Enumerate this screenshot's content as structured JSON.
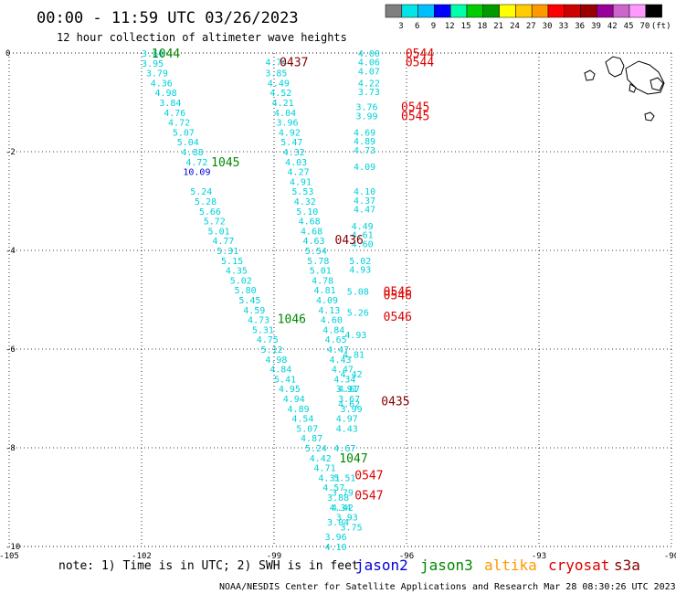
{
  "header": {
    "title": "00:00 - 11:59 UTC 03/26/2023",
    "subtitle": "12 hour collection of altimeter wave heights"
  },
  "colorbar": {
    "ticks": [
      "3",
      "6",
      "9",
      "12",
      "15",
      "18",
      "21",
      "24",
      "27",
      "30",
      "33",
      "36",
      "39",
      "42",
      "45",
      "70",
      "(ft)"
    ],
    "colors": [
      "#7f7f7f",
      "#00e5e5",
      "#00bfff",
      "#0000ff",
      "#00ffaa",
      "#00cc00",
      "#009900",
      "#ffff00",
      "#ffcc00",
      "#ff9900",
      "#ff0000",
      "#cc0000",
      "#990000",
      "#990099",
      "#cc66cc",
      "#ff99ff",
      "#000000"
    ]
  },
  "footer": {
    "note": "note: 1) Time is in UTC; 2) SWH is in feet",
    "satellites": [
      {
        "name": "jason2",
        "color": "#0000dd"
      },
      {
        "name": "jason3",
        "color": "#008800"
      },
      {
        "name": "altika",
        "color": "#ff9900"
      },
      {
        "name": "cryosat",
        "color": "#dd0000"
      },
      {
        "name": "s3a",
        "color": "#880000"
      }
    ],
    "credit": "NOAA/NESDIS Center for Satellite Applications and Research   Mar 28 08:30:26 UTC 2023"
  },
  "chart_data": {
    "type": "scatter",
    "title": "00:00 - 11:59 UTC 03/26/2023",
    "subtitle": "12 hour collection of altimeter wave heights",
    "xlim": [
      -105,
      -90
    ],
    "ylim": [
      -10,
      0
    ],
    "x_ticks": [
      "-105",
      "-102",
      "-99",
      "-96",
      "-93",
      "-90"
    ],
    "y_ticks": [
      "0",
      "-2",
      "-4",
      "-6",
      "-8",
      "-10"
    ],
    "grid": true,
    "units": "ft",
    "time_labels": [
      {
        "text": "1044",
        "lon": -101.45,
        "lat": 0.0,
        "sat": "jason3",
        "color": "#008800"
      },
      {
        "text": "0437",
        "lon": -98.55,
        "lat": -0.18,
        "sat": "s3a",
        "color": "#880000"
      },
      {
        "text": "0544",
        "lon": -95.7,
        "lat": 0.0,
        "sat": "cryosat",
        "color": "#dd0000"
      },
      {
        "text": "0544",
        "lon": -95.7,
        "lat": -0.18,
        "sat": "cryosat",
        "color": "#dd0000"
      },
      {
        "text": "0545",
        "lon": -95.8,
        "lat": -1.08,
        "sat": "cryosat",
        "color": "#dd0000"
      },
      {
        "text": "0545",
        "lon": -95.8,
        "lat": -1.27,
        "sat": "cryosat",
        "color": "#dd0000"
      },
      {
        "text": "1045",
        "lon": -100.1,
        "lat": -2.2,
        "sat": "jason3",
        "color": "#008800"
      },
      {
        "text": "0436",
        "lon": -97.3,
        "lat": -3.78,
        "sat": "s3a",
        "color": "#880000"
      },
      {
        "text": "0546",
        "lon": -96.2,
        "lat": -4.82,
        "sat": "cryosat",
        "color": "#dd0000"
      },
      {
        "text": "0546",
        "lon": -96.2,
        "lat": -4.9,
        "sat": "cryosat",
        "color": "#dd0000"
      },
      {
        "text": "0546",
        "lon": -96.2,
        "lat": -5.33,
        "sat": "cryosat",
        "color": "#dd0000"
      },
      {
        "text": "1046",
        "lon": -98.6,
        "lat": -5.38,
        "sat": "jason3",
        "color": "#008800"
      },
      {
        "text": "0435",
        "lon": -96.25,
        "lat": -7.05,
        "sat": "s3a",
        "color": "#880000"
      },
      {
        "text": "1047",
        "lon": -97.2,
        "lat": -8.2,
        "sat": "jason3",
        "color": "#008800"
      },
      {
        "text": "0547",
        "lon": -96.85,
        "lat": -8.55,
        "sat": "cryosat",
        "color": "#dd0000"
      },
      {
        "text": "0547",
        "lon": -96.85,
        "lat": -8.95,
        "sat": "cryosat",
        "color": "#dd0000"
      }
    ],
    "series": [
      {
        "name": "jason3",
        "color": "#00d0d8",
        "points": [
          [
            -101.75,
            0.0,
            3.64
          ],
          [
            -101.75,
            -0.2,
            3.95
          ],
          [
            -101.65,
            -0.4,
            3.79
          ],
          [
            -101.55,
            -0.6,
            4.36
          ],
          [
            -101.45,
            -0.8,
            4.98
          ],
          [
            -101.35,
            -1.0,
            3.84
          ],
          [
            -101.25,
            -1.2,
            4.76
          ],
          [
            -101.15,
            -1.4,
            4.72
          ],
          [
            -101.05,
            -1.6,
            5.07
          ],
          [
            -100.95,
            -1.8,
            5.04
          ],
          [
            -100.85,
            -2.0,
            4.88
          ],
          [
            -100.75,
            -2.2,
            4.72
          ],
          [
            -100.65,
            -2.8,
            5.24
          ],
          [
            -100.55,
            -3.0,
            5.28
          ],
          [
            -100.45,
            -3.2,
            5.66
          ],
          [
            -100.35,
            -3.4,
            5.72
          ],
          [
            -100.25,
            -3.6,
            5.01
          ],
          [
            -100.15,
            -3.8,
            4.77
          ],
          [
            -100.05,
            -4.0,
            5.31
          ],
          [
            -99.95,
            -4.2,
            5.15
          ],
          [
            -99.85,
            -4.4,
            4.35
          ],
          [
            -99.75,
            -4.6,
            5.02
          ],
          [
            -99.65,
            -4.8,
            5.8
          ],
          [
            -99.55,
            -5.0,
            5.45
          ],
          [
            -99.45,
            -5.2,
            4.59
          ],
          [
            -99.35,
            -5.4,
            4.73
          ],
          [
            -99.25,
            -5.6,
            5.31
          ],
          [
            -99.15,
            -5.8,
            4.75
          ],
          [
            -99.05,
            -6.0,
            5.12
          ],
          [
            -98.95,
            -6.2,
            4.98
          ],
          [
            -98.85,
            -6.4,
            4.84
          ],
          [
            -98.75,
            -6.6,
            5.41
          ],
          [
            -98.65,
            -6.8,
            4.95
          ],
          [
            -98.55,
            -7.0,
            4.94
          ],
          [
            -98.45,
            -7.2,
            4.89
          ],
          [
            -98.35,
            -7.4,
            4.54
          ],
          [
            -98.25,
            -7.6,
            5.07
          ],
          [
            -98.15,
            -7.8,
            4.87
          ],
          [
            -98.05,
            -8.0,
            5.24
          ],
          [
            -97.95,
            -8.2,
            4.42
          ],
          [
            -97.85,
            -8.4,
            4.71
          ],
          [
            -97.75,
            -8.6,
            4.31
          ],
          [
            -97.65,
            -8.8,
            4.57
          ],
          [
            -97.55,
            -9.0,
            3.88
          ],
          [
            -97.45,
            -9.2,
            4.42
          ],
          [
            -97.35,
            -9.4,
            3.93
          ],
          [
            -97.25,
            -9.6,
            3.75
          ]
        ]
      },
      {
        "name": "jason3-10.09",
        "color": "#0000dd",
        "points": [
          [
            -100.75,
            -2.4,
            10.09
          ]
        ]
      },
      {
        "name": "s3a",
        "color": "#00d0d8",
        "points": [
          [
            -98.95,
            -0.18,
            4.74
          ],
          [
            -98.95,
            -0.4,
            3.85
          ],
          [
            -98.9,
            -0.6,
            4.49
          ],
          [
            -98.85,
            -0.8,
            4.52
          ],
          [
            -98.8,
            -1.0,
            4.21
          ],
          [
            -98.75,
            -1.2,
            4.04
          ],
          [
            -98.7,
            -1.4,
            3.96
          ],
          [
            -98.65,
            -1.6,
            4.92
          ],
          [
            -98.6,
            -1.8,
            5.47
          ],
          [
            -98.55,
            -2.0,
            4.32
          ],
          [
            -98.5,
            -2.2,
            4.03
          ],
          [
            -98.45,
            -2.4,
            4.27
          ],
          [
            -98.4,
            -2.6,
            4.91
          ],
          [
            -98.35,
            -2.8,
            5.53
          ],
          [
            -98.3,
            -3.0,
            4.32
          ],
          [
            -98.25,
            -3.2,
            5.1
          ],
          [
            -98.2,
            -3.4,
            4.68
          ],
          [
            -98.15,
            -3.6,
            4.68
          ],
          [
            -98.1,
            -3.8,
            4.63
          ],
          [
            -98.05,
            -4.0,
            5.54
          ],
          [
            -98.0,
            -4.2,
            5.78
          ],
          [
            -97.95,
            -4.4,
            5.01
          ],
          [
            -97.9,
            -4.6,
            4.78
          ],
          [
            -97.85,
            -4.8,
            4.81
          ],
          [
            -97.8,
            -5.0,
            4.09
          ],
          [
            -97.75,
            -5.2,
            4.13
          ],
          [
            -97.7,
            -5.4,
            4.6
          ],
          [
            -97.65,
            -5.6,
            4.84
          ],
          [
            -97.6,
            -5.8,
            4.65
          ],
          [
            -97.55,
            -6.0,
            4.47
          ],
          [
            -97.5,
            -6.2,
            4.43
          ],
          [
            -97.45,
            -6.4,
            4.47
          ],
          [
            -97.4,
            -6.6,
            4.34
          ],
          [
            -97.35,
            -6.8,
            3.91
          ],
          [
            -97.3,
            -7.0,
            3.67
          ],
          [
            -97.25,
            -7.2,
            3.99
          ]
        ]
      },
      {
        "name": "cryosat",
        "color": "#00d0d8",
        "points": [
          [
            -96.85,
            0.0,
            4.0
          ],
          [
            -96.85,
            -0.18,
            4.06
          ],
          [
            -96.85,
            -0.36,
            4.07
          ],
          [
            -96.85,
            -0.6,
            4.22
          ],
          [
            -96.85,
            -0.78,
            3.73
          ],
          [
            -96.9,
            -1.08,
            3.76
          ],
          [
            -96.9,
            -1.27,
            3.99
          ],
          [
            -96.95,
            -1.6,
            4.69
          ],
          [
            -96.95,
            -1.78,
            4.89
          ],
          [
            -96.95,
            -1.96,
            4.73
          ],
          [
            -96.95,
            -2.3,
            4.09
          ],
          [
            -96.95,
            -2.8,
            4.1
          ],
          [
            -96.95,
            -2.98,
            4.37
          ],
          [
            -96.95,
            -3.16,
            4.47
          ],
          [
            -97.0,
            -3.5,
            4.49
          ],
          [
            -97.0,
            -3.68,
            4.61
          ],
          [
            -97.0,
            -3.86,
            4.6
          ],
          [
            -97.05,
            -4.2,
            5.02
          ],
          [
            -97.05,
            -4.38,
            4.93
          ],
          [
            -97.1,
            -4.82,
            5.08
          ],
          [
            -97.1,
            -5.25,
            5.26
          ],
          [
            -97.15,
            -5.7,
            4.93
          ],
          [
            -97.2,
            -6.1,
            4.81
          ],
          [
            -97.25,
            -6.5,
            4.42
          ],
          [
            -97.3,
            -6.8,
            4.67
          ],
          [
            -97.3,
            -7.1,
            4.62
          ],
          [
            -97.35,
            -7.4,
            4.97
          ],
          [
            -97.35,
            -7.6,
            4.43
          ],
          [
            -97.4,
            -8.0,
            4.67
          ],
          [
            -97.4,
            -8.6,
            5.51
          ],
          [
            -97.45,
            -8.9,
            3.79
          ],
          [
            -97.5,
            -9.2,
            4.34
          ],
          [
            -97.55,
            -9.5,
            3.04
          ],
          [
            -97.6,
            -9.8,
            3.96
          ],
          [
            -97.6,
            -10.0,
            4.1
          ]
        ]
      }
    ]
  },
  "map": {
    "label": "Galapagos coastline outline"
  }
}
